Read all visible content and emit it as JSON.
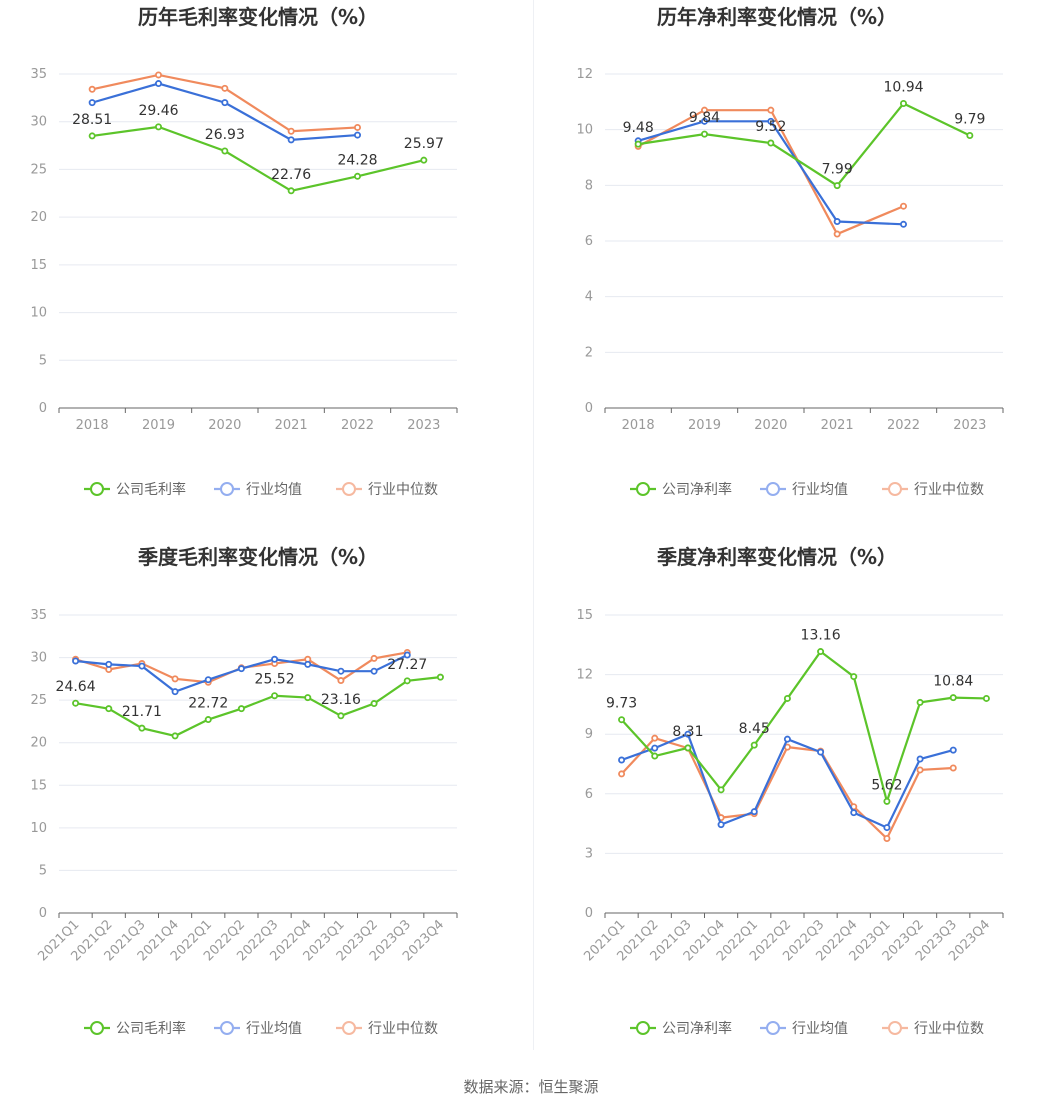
{
  "colors": {
    "company": "#5cc42a",
    "avg": "#3a70d8",
    "median": "#f08a5d",
    "avg_legend": "#94aef0",
    "median_legend": "#f6b9a0"
  },
  "source": "数据来源：恒生聚源",
  "legend_names": {
    "avg": "行业均值",
    "median": "行业中位数"
  },
  "chart_data": [
    {
      "type": "line",
      "title": "历年毛利率变化情况（%）",
      "categories": [
        "2018",
        "2019",
        "2020",
        "2021",
        "2022",
        "2023"
      ],
      "ylim": [
        0,
        35
      ],
      "yticks": [
        0,
        5,
        10,
        15,
        20,
        25,
        30,
        35
      ],
      "rotate_x": false,
      "series": [
        {
          "name": "公司毛利率",
          "key": "company",
          "values": [
            28.51,
            29.46,
            26.93,
            22.76,
            24.28,
            25.97
          ]
        },
        {
          "name": "行业均值",
          "key": "avg",
          "values": [
            32.0,
            34.0,
            32.0,
            28.1,
            28.6,
            null
          ]
        },
        {
          "name": "行业中位数",
          "key": "median",
          "values": [
            33.4,
            34.9,
            33.5,
            29.0,
            29.4,
            null
          ]
        }
      ],
      "labels": [
        {
          "i": 0,
          "text": "28.51"
        },
        {
          "i": 1,
          "text": "29.46"
        },
        {
          "i": 2,
          "text": "26.93"
        },
        {
          "i": 3,
          "text": "22.76"
        },
        {
          "i": 4,
          "text": "24.28"
        },
        {
          "i": 5,
          "text": "25.97"
        }
      ]
    },
    {
      "type": "line",
      "title": "历年净利率变化情况（%）",
      "categories": [
        "2018",
        "2019",
        "2020",
        "2021",
        "2022",
        "2023"
      ],
      "ylim": [
        0,
        12
      ],
      "yticks": [
        0,
        2,
        4,
        6,
        8,
        10,
        12
      ],
      "rotate_x": false,
      "series": [
        {
          "name": "公司净利率",
          "key": "company",
          "values": [
            9.48,
            9.84,
            9.52,
            7.99,
            10.94,
            9.79
          ]
        },
        {
          "name": "行业均值",
          "key": "avg",
          "values": [
            9.6,
            10.3,
            10.3,
            6.7,
            6.6,
            null
          ]
        },
        {
          "name": "行业中位数",
          "key": "median",
          "values": [
            9.4,
            10.7,
            10.7,
            6.25,
            7.25,
            null
          ]
        }
      ],
      "labels": [
        {
          "i": 0,
          "text": "9.48"
        },
        {
          "i": 1,
          "text": "9.84"
        },
        {
          "i": 2,
          "text": "9.52"
        },
        {
          "i": 3,
          "text": "7.99"
        },
        {
          "i": 4,
          "text": "10.94"
        },
        {
          "i": 5,
          "text": "9.79"
        }
      ]
    },
    {
      "type": "line",
      "title": "季度毛利率变化情况（%）",
      "categories": [
        "2021Q1",
        "2021Q2",
        "2021Q3",
        "2021Q4",
        "2022Q1",
        "2022Q2",
        "2022Q3",
        "2022Q4",
        "2023Q1",
        "2023Q2",
        "2023Q3",
        "2023Q4"
      ],
      "ylim": [
        0,
        35
      ],
      "yticks": [
        0,
        5,
        10,
        15,
        20,
        25,
        30,
        35
      ],
      "rotate_x": true,
      "series": [
        {
          "name": "公司毛利率",
          "key": "company",
          "values": [
            24.64,
            24.0,
            21.71,
            20.8,
            22.72,
            24.0,
            25.52,
            25.3,
            23.16,
            24.6,
            27.27,
            27.7
          ]
        },
        {
          "name": "行业均值",
          "key": "avg",
          "values": [
            29.6,
            29.2,
            29.0,
            26.0,
            27.4,
            28.7,
            29.8,
            29.2,
            28.4,
            28.4,
            30.3,
            null
          ]
        },
        {
          "name": "行业中位数",
          "key": "median",
          "values": [
            29.8,
            28.6,
            29.3,
            27.5,
            27.1,
            28.8,
            29.3,
            29.8,
            27.3,
            29.9,
            30.6,
            null
          ]
        }
      ],
      "labels": [
        {
          "i": 0,
          "text": "24.64"
        },
        {
          "i": 2,
          "text": "21.71"
        },
        {
          "i": 4,
          "text": "22.72"
        },
        {
          "i": 6,
          "text": "25.52"
        },
        {
          "i": 8,
          "text": "23.16"
        },
        {
          "i": 10,
          "text": "27.27"
        }
      ]
    },
    {
      "type": "line",
      "title": "季度净利率变化情况（%）",
      "categories": [
        "2021Q1",
        "2021Q2",
        "2021Q3",
        "2021Q4",
        "2022Q1",
        "2022Q2",
        "2022Q3",
        "2022Q4",
        "2023Q1",
        "2023Q2",
        "2023Q3",
        "2023Q4"
      ],
      "ylim": [
        0,
        15
      ],
      "yticks": [
        0,
        3,
        6,
        9,
        12,
        15
      ],
      "rotate_x": true,
      "series": [
        {
          "name": "公司净利率",
          "key": "company",
          "values": [
            9.73,
            7.9,
            8.31,
            6.2,
            8.45,
            10.8,
            13.16,
            11.9,
            5.62,
            10.6,
            10.84,
            10.8
          ]
        },
        {
          "name": "行业均值",
          "key": "avg",
          "values": [
            7.7,
            8.3,
            9.0,
            4.45,
            5.1,
            8.75,
            8.1,
            5.05,
            4.3,
            7.75,
            8.2,
            null
          ]
        },
        {
          "name": "行业中位数",
          "key": "median",
          "values": [
            7.0,
            8.8,
            8.3,
            4.8,
            5.0,
            8.35,
            8.15,
            5.35,
            3.75,
            7.2,
            7.3,
            null
          ]
        }
      ],
      "labels": [
        {
          "i": 0,
          "text": "9.73"
        },
        {
          "i": 2,
          "text": "8.31"
        },
        {
          "i": 4,
          "text": "8.45"
        },
        {
          "i": 6,
          "text": "13.16"
        },
        {
          "i": 8,
          "text": "5.62"
        },
        {
          "i": 10,
          "text": "10.84"
        }
      ]
    }
  ]
}
